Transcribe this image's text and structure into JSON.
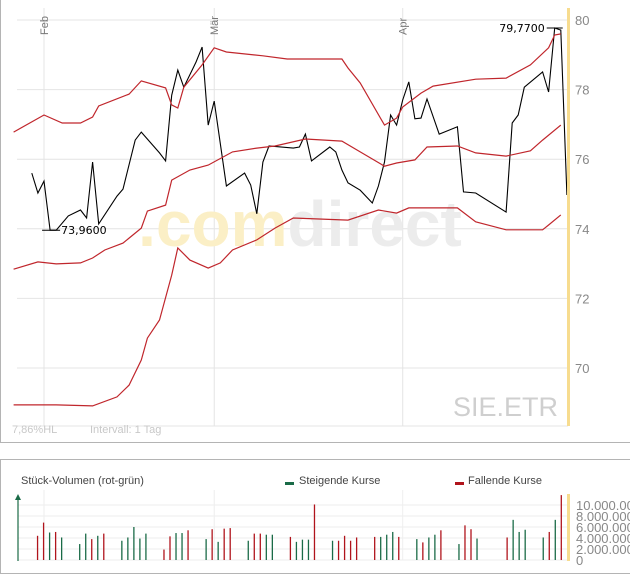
{
  "price_chart": {
    "symbol": "SIE.ETR",
    "watermark": {
      "part1": ".com",
      "part2": "direct"
    },
    "footer_left": "7,86%HL",
    "footer_interval": "Intervall: 1 Tag",
    "months": [
      {
        "label": "Feb",
        "date": "02-01"
      },
      {
        "label": "Mär",
        "date": "03-01"
      },
      {
        "label": "Apr",
        "date": "04-01"
      }
    ],
    "y_ticks": [
      "80",
      "78",
      "76",
      "74",
      "72",
      "70"
    ],
    "max_label": "79,7700",
    "min_label": "73,9600",
    "colors": {
      "price": "#000000",
      "bands": "#c0262c",
      "today_marker": "#f7dc8f",
      "grid": "#e4e4e4"
    }
  },
  "chart_data": [
    {
      "type": "line",
      "ylim": [
        68.8,
        80.3
      ],
      "y_ticks": [
        80,
        78,
        76,
        74,
        72,
        70
      ],
      "grid": true,
      "max": {
        "date": "04-26",
        "value": 79.77
      },
      "min": {
        "date": "02-02",
        "value": 73.96
      },
      "series": [
        {
          "role": "price",
          "points": [
            [
              "01-30",
              75.6
            ],
            [
              "01-31",
              75.03
            ],
            [
              "02-01",
              75.37
            ],
            [
              "02-02",
              73.96
            ],
            [
              "02-03",
              73.96
            ],
            [
              "02-05",
              74.37
            ],
            [
              "02-07",
              74.54
            ],
            [
              "02-08",
              74.31
            ],
            [
              "02-09",
              75.92
            ],
            [
              "02-10",
              74.14
            ],
            [
              "02-13",
              74.94
            ],
            [
              "02-14",
              75.14
            ],
            [
              "02-16",
              76.55
            ],
            [
              "02-17",
              76.78
            ],
            [
              "02-20",
              76.18
            ],
            [
              "02-21",
              75.95
            ],
            [
              "02-22",
              77.84
            ],
            [
              "02-23",
              78.56
            ],
            [
              "02-24",
              78.07
            ],
            [
              "02-26",
              78.79
            ],
            [
              "02-27",
              79.22
            ],
            [
              "02-28",
              76.98
            ],
            [
              "03-01",
              77.67
            ],
            [
              "03-03",
              75.23
            ],
            [
              "03-06",
              75.6
            ],
            [
              "03-07",
              75.26
            ],
            [
              "03-08",
              74.43
            ],
            [
              "03-09",
              75.92
            ],
            [
              "03-10",
              76.38
            ],
            [
              "03-14",
              76.32
            ],
            [
              "03-15",
              76.35
            ],
            [
              "03-16",
              76.72
            ],
            [
              "03-17",
              75.95
            ],
            [
              "03-20",
              76.35
            ],
            [
              "03-21",
              76.21
            ],
            [
              "03-22",
              75.69
            ],
            [
              "03-23",
              75.32
            ],
            [
              "03-25",
              75.11
            ],
            [
              "03-27",
              74.74
            ],
            [
              "03-28",
              75.23
            ],
            [
              "03-29",
              75.92
            ],
            [
              "03-30",
              77.27
            ],
            [
              "03-31",
              76.98
            ],
            [
              "04-01",
              77.7
            ],
            [
              "04-02",
              78.22
            ],
            [
              "04-03",
              77.16
            ],
            [
              "04-04",
              77.18
            ],
            [
              "04-05",
              77.73
            ],
            [
              "04-07",
              76.72
            ],
            [
              "04-10",
              76.93
            ],
            [
              "04-11",
              75.06
            ],
            [
              "04-13",
              75.03
            ],
            [
              "04-18",
              74.48
            ],
            [
              "04-19",
              77.04
            ],
            [
              "04-20",
              77.27
            ],
            [
              "04-21",
              78.07
            ],
            [
              "04-24",
              78.51
            ],
            [
              "04-25",
              77.93
            ],
            [
              "04-26",
              79.77
            ],
            [
              "04-27",
              79.71
            ],
            [
              "04-28",
              74.97
            ]
          ]
        },
        {
          "role": "upper-band",
          "points": [
            [
              "01-27",
              76.78
            ],
            [
              "02-01",
              77.27
            ],
            [
              "02-04",
              77.04
            ],
            [
              "02-07",
              77.04
            ],
            [
              "02-09",
              77.21
            ],
            [
              "02-10",
              77.53
            ],
            [
              "02-15",
              77.87
            ],
            [
              "02-17",
              78.25
            ],
            [
              "02-21",
              78.05
            ],
            [
              "02-22",
              77.56
            ],
            [
              "02-23",
              77.47
            ],
            [
              "02-24",
              78.07
            ],
            [
              "02-27",
              78.71
            ],
            [
              "03-01",
              79.2
            ],
            [
              "03-03",
              79.08
            ],
            [
              "03-09",
              78.97
            ],
            [
              "03-13",
              78.88
            ],
            [
              "03-22",
              78.88
            ],
            [
              "03-23",
              78.62
            ],
            [
              "03-25",
              78.19
            ],
            [
              "03-29",
              76.98
            ],
            [
              "03-31",
              77.18
            ],
            [
              "04-01",
              77.5
            ],
            [
              "04-04",
              77.9
            ],
            [
              "04-06",
              78.1
            ],
            [
              "04-13",
              78.3
            ],
            [
              "04-18",
              78.33
            ],
            [
              "04-22",
              78.71
            ],
            [
              "04-25",
              79.2
            ],
            [
              "04-26",
              79.57
            ],
            [
              "04-27",
              79.6
            ]
          ]
        },
        {
          "role": "middle-band",
          "points": [
            [
              "01-27",
              72.84
            ],
            [
              "01-31",
              73.05
            ],
            [
              "02-03",
              72.99
            ],
            [
              "02-07",
              73.02
            ],
            [
              "02-09",
              73.16
            ],
            [
              "02-11",
              73.39
            ],
            [
              "02-14",
              73.59
            ],
            [
              "02-17",
              74.02
            ],
            [
              "02-18",
              74.51
            ],
            [
              "02-21",
              74.68
            ],
            [
              "02-22",
              75.4
            ],
            [
              "02-25",
              75.69
            ],
            [
              "02-28",
              75.83
            ],
            [
              "03-04",
              76.21
            ],
            [
              "03-08",
              76.32
            ],
            [
              "03-11",
              76.38
            ],
            [
              "03-16",
              76.58
            ],
            [
              "03-22",
              76.52
            ],
            [
              "03-25",
              76.21
            ],
            [
              "03-29",
              75.8
            ],
            [
              "03-31",
              75.89
            ],
            [
              "04-03",
              75.98
            ],
            [
              "04-05",
              76.35
            ],
            [
              "04-10",
              76.38
            ],
            [
              "04-13",
              76.18
            ],
            [
              "04-18",
              76.09
            ],
            [
              "04-22",
              76.24
            ],
            [
              "04-24",
              76.55
            ],
            [
              "04-27",
              76.98
            ]
          ]
        },
        {
          "role": "lower-band",
          "points": [
            [
              "01-27",
              68.94
            ],
            [
              "02-03",
              68.94
            ],
            [
              "02-09",
              68.91
            ],
            [
              "02-13",
              69.17
            ],
            [
              "02-15",
              69.51
            ],
            [
              "02-17",
              70.23
            ],
            [
              "02-18",
              70.86
            ],
            [
              "02-20",
              71.38
            ],
            [
              "02-22",
              72.67
            ],
            [
              "02-23",
              73.45
            ],
            [
              "02-25",
              73.1
            ],
            [
              "02-28",
              72.87
            ],
            [
              "03-02",
              73.02
            ],
            [
              "03-04",
              73.39
            ],
            [
              "03-08",
              73.68
            ],
            [
              "03-11",
              74.02
            ],
            [
              "03-14",
              74.31
            ],
            [
              "03-23",
              74.25
            ],
            [
              "03-28",
              74.54
            ],
            [
              "03-31",
              74.45
            ],
            [
              "04-02",
              74.6
            ],
            [
              "04-10",
              74.6
            ],
            [
              "04-13",
              74.2
            ],
            [
              "04-18",
              73.97
            ],
            [
              "04-24",
              73.97
            ],
            [
              "04-25",
              74.11
            ],
            [
              "04-27",
              74.4
            ]
          ]
        }
      ]
    },
    {
      "type": "bar",
      "title": "Stück-Volumen (rot-grün)",
      "legend": [
        {
          "name": "Steigende Kurse",
          "color": "#1a6b47"
        },
        {
          "name": "Fallende Kurse",
          "color": "#b0141c"
        }
      ],
      "y_ticks": [
        "10.000.000",
        "8.000.000",
        "6.000.000",
        "4.000.000",
        "2.000.000",
        "0"
      ],
      "ylim": [
        0,
        12000000
      ],
      "bars": [
        [
          "01-30",
          4400000,
          "down"
        ],
        [
          "01-31",
          6800000,
          "down"
        ],
        [
          "02-01",
          5000000,
          "up"
        ],
        [
          "02-02",
          5100000,
          "down"
        ],
        [
          "02-03",
          4100000,
          "up"
        ],
        [
          "02-06",
          2900000,
          "up"
        ],
        [
          "02-07",
          4800000,
          "up"
        ],
        [
          "02-08",
          3800000,
          "down"
        ],
        [
          "02-09",
          4400000,
          "up"
        ],
        [
          "02-10",
          4800000,
          "down"
        ],
        [
          "02-13",
          3500000,
          "up"
        ],
        [
          "02-14",
          4100000,
          "up"
        ],
        [
          "02-15",
          6000000,
          "up"
        ],
        [
          "02-16",
          3900000,
          "up"
        ],
        [
          "02-17",
          4800000,
          "up"
        ],
        [
          "02-20",
          1900000,
          "down"
        ],
        [
          "02-21",
          4300000,
          "down"
        ],
        [
          "02-22",
          4900000,
          "up"
        ],
        [
          "02-23",
          4900000,
          "up"
        ],
        [
          "02-24",
          5400000,
          "down"
        ],
        [
          "02-27",
          3800000,
          "up"
        ],
        [
          "02-28",
          5600000,
          "down"
        ],
        [
          "03-01",
          3300000,
          "up"
        ],
        [
          "03-02",
          5700000,
          "down"
        ],
        [
          "03-03",
          5800000,
          "down"
        ],
        [
          "03-06",
          3500000,
          "up"
        ],
        [
          "03-07",
          4800000,
          "down"
        ],
        [
          "03-08",
          4800000,
          "down"
        ],
        [
          "03-09",
          4600000,
          "up"
        ],
        [
          "03-10",
          4600000,
          "up"
        ],
        [
          "03-13",
          4200000,
          "down"
        ],
        [
          "03-14",
          3300000,
          "up"
        ],
        [
          "03-15",
          3700000,
          "up"
        ],
        [
          "03-16",
          3700000,
          "up"
        ],
        [
          "03-17",
          10100000,
          "down"
        ],
        [
          "03-20",
          3500000,
          "up"
        ],
        [
          "03-21",
          3500000,
          "down"
        ],
        [
          "03-22",
          4400000,
          "down"
        ],
        [
          "03-23",
          3500000,
          "down"
        ],
        [
          "03-24",
          4100000,
          "down"
        ],
        [
          "03-27",
          4200000,
          "down"
        ],
        [
          "03-28",
          4200000,
          "up"
        ],
        [
          "03-29",
          4600000,
          "up"
        ],
        [
          "03-30",
          5100000,
          "up"
        ],
        [
          "03-31",
          4200000,
          "down"
        ],
        [
          "04-03",
          3800000,
          "up"
        ],
        [
          "04-04",
          3200000,
          "down"
        ],
        [
          "04-05",
          4100000,
          "up"
        ],
        [
          "04-06",
          4600000,
          "up"
        ],
        [
          "04-07",
          5400000,
          "down"
        ],
        [
          "04-10",
          2900000,
          "up"
        ],
        [
          "04-11",
          6300000,
          "down"
        ],
        [
          "04-12",
          5600000,
          "down"
        ],
        [
          "04-13",
          3900000,
          "up"
        ],
        [
          "04-18",
          4100000,
          "down"
        ],
        [
          "04-19",
          7300000,
          "up"
        ],
        [
          "04-20",
          5100000,
          "up"
        ],
        [
          "04-21",
          5500000,
          "up"
        ],
        [
          "04-24",
          4100000,
          "up"
        ],
        [
          "04-25",
          5100000,
          "down"
        ],
        [
          "04-26",
          7300000,
          "up"
        ],
        [
          "04-27",
          11800000,
          "down"
        ]
      ]
    }
  ]
}
